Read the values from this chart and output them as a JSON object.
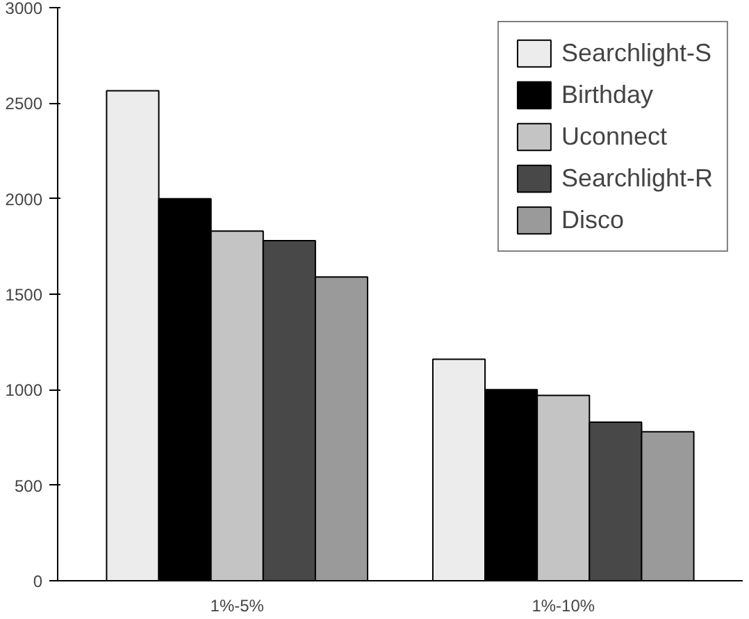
{
  "chart_data": {
    "type": "bar",
    "categories": [
      "1%-5%",
      "1%-10%"
    ],
    "series": [
      {
        "name": "Searchlight-S",
        "color": "#ececec",
        "values": [
          2565,
          1160
        ]
      },
      {
        "name": "Birthday",
        "color": "#000000",
        "values": [
          2000,
          1000
        ]
      },
      {
        "name": "Uconnect",
        "color": "#c4c4c4",
        "values": [
          1830,
          970
        ]
      },
      {
        "name": "Searchlight-R",
        "color": "#484848",
        "values": [
          1780,
          830
        ]
      },
      {
        "name": "Disco",
        "color": "#9a9a9a",
        "values": [
          1590,
          780
        ]
      }
    ],
    "ylim": [
      0,
      3000
    ],
    "yticks": [
      0,
      500,
      1000,
      1500,
      2000,
      2500,
      3000
    ],
    "grid": false,
    "legend": "top right"
  }
}
